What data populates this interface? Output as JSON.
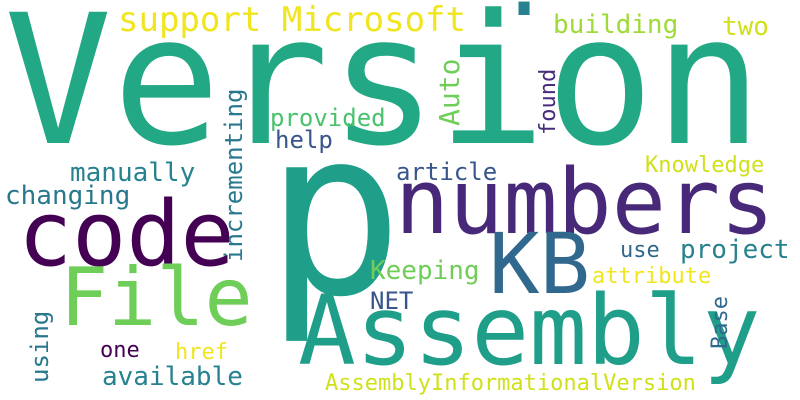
{
  "cloud": {
    "words": {
      "version": "Version",
      "dot": ".",
      "p": "p",
      "numbers": "numbers",
      "code": "code",
      "kb": "KB",
      "assembly": "Assembly",
      "file": "File",
      "support_microsoft": "support Microsoft",
      "building": "building",
      "two": "two",
      "auto": "Auto",
      "found": "found",
      "provided": "provided",
      "help": "help",
      "incrementing": "incrementing",
      "manually": "manually",
      "changing": "changing",
      "article": "article",
      "knowledge": "Knowledge",
      "project": "project",
      "use": "use",
      "keeping": "Keeping",
      "attribute": "attribute",
      "net": "NET",
      "base": "Base",
      "using": "using",
      "one": "one",
      "href": "href",
      "available": "available",
      "assembly_informational_version": "AssemblyInformationalVersion"
    },
    "colors": {
      "teal_green": "#22a884",
      "teal": "#1f9e89",
      "deep_purple": "#440154",
      "indigo": "#482878",
      "blue": "#31688e",
      "slate": "#39568c",
      "petrol": "#26828e",
      "sea": "#2a788e",
      "light_green": "#6ece58",
      "lime": "#a0da39",
      "yellow": "#f0e51e",
      "mint": "#4ac16d",
      "dark_violet": "#472d7b",
      "olive_yellow": "#d0e11c"
    }
  }
}
